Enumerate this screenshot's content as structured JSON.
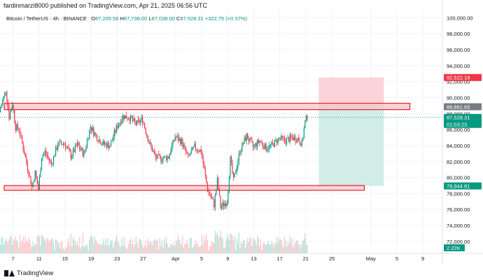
{
  "header": {
    "text": "fardinmarzi8000 published on TradingView.com, Apr 21, 2025 06:56 UTC"
  },
  "symbol": {
    "name": "Bitcoin / TetherUS · 4h · BINANCE",
    "o_label": "O",
    "o": "87,205.56",
    "h_label": "H",
    "h": "87,738.00",
    "l_label": "L",
    "l": "87,038.00",
    "c_label": "C",
    "c": "87,528.31",
    "change": "+322.75 (+0.37%)"
  },
  "footer": {
    "brand": "TradingView"
  },
  "colors": {
    "up": "#089981",
    "down": "#f23645",
    "zone_fill": "#f7c5c9",
    "zone_stroke": "#e8212f",
    "stop_fill": "#f9cdd1",
    "target_fill": "#cdebe4"
  },
  "chart_data": {
    "type": "candlestick",
    "ylim": [
      70500,
      101000
    ],
    "xlim": [
      "2025-03-05 00:00",
      "2025-05-12 00:00"
    ],
    "y_ticks": [
      72000,
      74000,
      76000,
      78000,
      80000,
      82000,
      84000,
      86000,
      88000,
      90000,
      92000,
      94000,
      96000,
      98000,
      100000
    ],
    "y_tick_labels": [
      "72,000.00",
      "74,000.00",
      "76,000.00",
      "78,000.00",
      "80,000.00",
      "82,000.00",
      "84,000.00",
      "86,000.00",
      "88,000.00",
      "90,000.00",
      "92,000.00",
      "94,000.00",
      "96,000.00",
      "98,000.00",
      "100,000.00"
    ],
    "x_ticks": [
      {
        "label": "7",
        "date": "2025-03-07"
      },
      {
        "label": "11",
        "date": "2025-03-11"
      },
      {
        "label": "15",
        "date": "2025-03-15"
      },
      {
        "label": "19",
        "date": "2025-03-19"
      },
      {
        "label": "23",
        "date": "2025-03-23"
      },
      {
        "label": "27",
        "date": "2025-03-27"
      },
      {
        "label": "Apr",
        "date": "2025-04-01"
      },
      {
        "label": "5",
        "date": "2025-04-05"
      },
      {
        "label": "9",
        "date": "2025-04-09"
      },
      {
        "label": "13",
        "date": "2025-04-13"
      },
      {
        "label": "17",
        "date": "2025-04-17"
      },
      {
        "label": "21",
        "date": "2025-04-21"
      },
      {
        "label": "25",
        "date": "2025-04-25"
      },
      {
        "label": "May",
        "date": "2025-05-01"
      },
      {
        "label": "5",
        "date": "2025-05-05"
      },
      {
        "label": "9",
        "date": "2025-05-09"
      }
    ],
    "price_path": [
      [
        "2025-03-05",
        88200
      ],
      [
        "2025-03-06",
        91000
      ],
      [
        "2025-03-06 12:00",
        87600
      ],
      [
        "2025-03-07",
        89300
      ],
      [
        "2025-03-07 12:00",
        86300
      ],
      [
        "2025-03-08",
        86100
      ],
      [
        "2025-03-09",
        82500
      ],
      [
        "2025-03-10",
        78800
      ],
      [
        "2025-03-10 12:00",
        80600
      ],
      [
        "2025-03-11",
        78500
      ],
      [
        "2025-03-11 12:00",
        82600
      ],
      [
        "2025-03-12",
        83200
      ],
      [
        "2025-03-13",
        81700
      ],
      [
        "2025-03-14",
        84200
      ],
      [
        "2025-03-15",
        84300
      ],
      [
        "2025-03-16",
        82700
      ],
      [
        "2025-03-17",
        84100
      ],
      [
        "2025-03-18",
        82900
      ],
      [
        "2025-03-19",
        86400
      ],
      [
        "2025-03-20",
        85000
      ],
      [
        "2025-03-21",
        84200
      ],
      [
        "2025-03-22",
        84000
      ],
      [
        "2025-03-23",
        86200
      ],
      [
        "2025-03-24",
        87700
      ],
      [
        "2025-03-25",
        87500
      ],
      [
        "2025-03-26",
        86700
      ],
      [
        "2025-03-27",
        87300
      ],
      [
        "2025-03-28",
        84400
      ],
      [
        "2025-03-29",
        82500
      ],
      [
        "2025-03-30",
        82400
      ],
      [
        "2025-03-31",
        82600
      ],
      [
        "2025-04-01",
        85100
      ],
      [
        "2025-04-02",
        84500
      ],
      [
        "2025-04-03",
        82500
      ],
      [
        "2025-04-04",
        83800
      ],
      [
        "2025-04-05",
        83300
      ],
      [
        "2025-04-06",
        78500
      ],
      [
        "2025-04-07",
        76600
      ],
      [
        "2025-04-07 12:00",
        79600
      ],
      [
        "2025-04-08",
        76300
      ],
      [
        "2025-04-09",
        77000
      ],
      [
        "2025-04-09 12:00",
        82300
      ],
      [
        "2025-04-10",
        79600
      ],
      [
        "2025-04-11",
        83400
      ],
      [
        "2025-04-12",
        85200
      ],
      [
        "2025-04-13",
        83800
      ],
      [
        "2025-04-14",
        84600
      ],
      [
        "2025-04-15",
        83700
      ],
      [
        "2025-04-16",
        84100
      ],
      [
        "2025-04-17",
        84900
      ],
      [
        "2025-04-18",
        84600
      ],
      [
        "2025-04-19",
        85000
      ],
      [
        "2025-04-20",
        84800
      ],
      [
        "2025-04-20 12:00",
        84200
      ],
      [
        "2025-04-21",
        87000
      ],
      [
        "2025-04-21 06:00",
        87528.31
      ]
    ],
    "bars_per_day": 6,
    "horizontal_zones": [
      {
        "date_from": "2025-03-05",
        "date_to": "2025-05-07",
        "top": 89300,
        "bottom": 88500
      },
      {
        "date_from": "2025-03-05",
        "date_to": "2025-04-30",
        "top": 79000,
        "bottom": 78400
      }
    ],
    "position": {
      "date_from": "2025-04-23",
      "date_to": "2025-05-03",
      "stop": 92522.18,
      "entry": 88861.65,
      "target": 78944.81
    },
    "dotted_price_line": 87528.31,
    "price_labels": [
      {
        "value": 92522.18,
        "text": "92,522.18",
        "color": "#f23645"
      },
      {
        "value": 88861.65,
        "text": "88,861.65",
        "color": "#787b86"
      },
      {
        "value": 87528.31,
        "text": "87,528.31",
        "sub": "01:03:23",
        "color": "#089981"
      },
      {
        "value": 78944.81,
        "text": "78,944.81",
        "color": "#089981"
      }
    ],
    "volume_label": "2.22K"
  }
}
